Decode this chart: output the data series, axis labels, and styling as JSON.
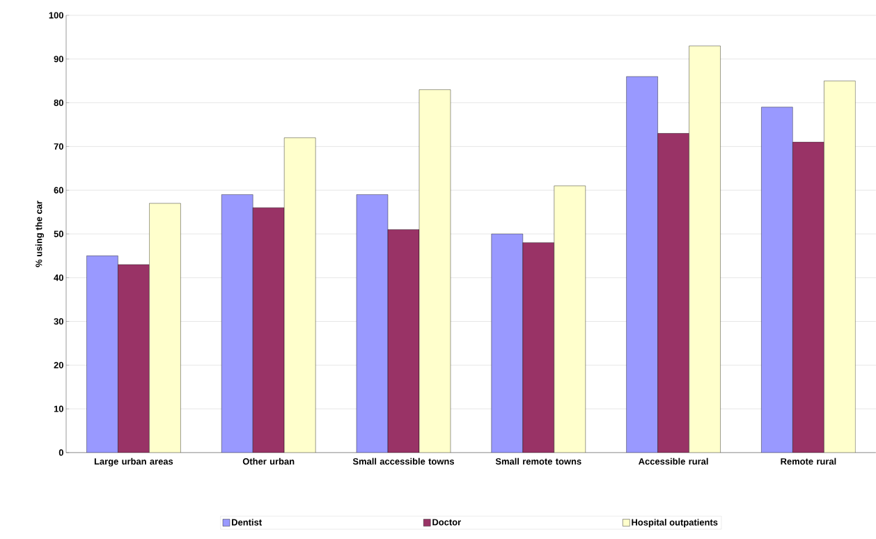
{
  "chart_data": {
    "type": "bar",
    "ylabel": "% using the car",
    "categories": [
      "Large urban areas",
      "Other urban",
      "Small accessible towns",
      "Small remote towns",
      "Accessible rural",
      "Remote rural"
    ],
    "series": [
      {
        "name": "Dentist",
        "color": "#9999ff",
        "values": [
          45,
          59,
          59,
          50,
          86,
          79
        ]
      },
      {
        "name": "Doctor",
        "color": "#993366",
        "values": [
          43,
          56,
          51,
          48,
          73,
          71
        ]
      },
      {
        "name": "Hospital outpatients",
        "color": "#ffffcc",
        "values": [
          57,
          72,
          83,
          61,
          93,
          85
        ]
      }
    ],
    "ylim": [
      0,
      100
    ],
    "yticks": [
      0,
      10,
      20,
      30,
      40,
      50,
      60,
      70,
      80,
      90,
      100
    ],
    "grid": "y",
    "legend": "bottom"
  }
}
